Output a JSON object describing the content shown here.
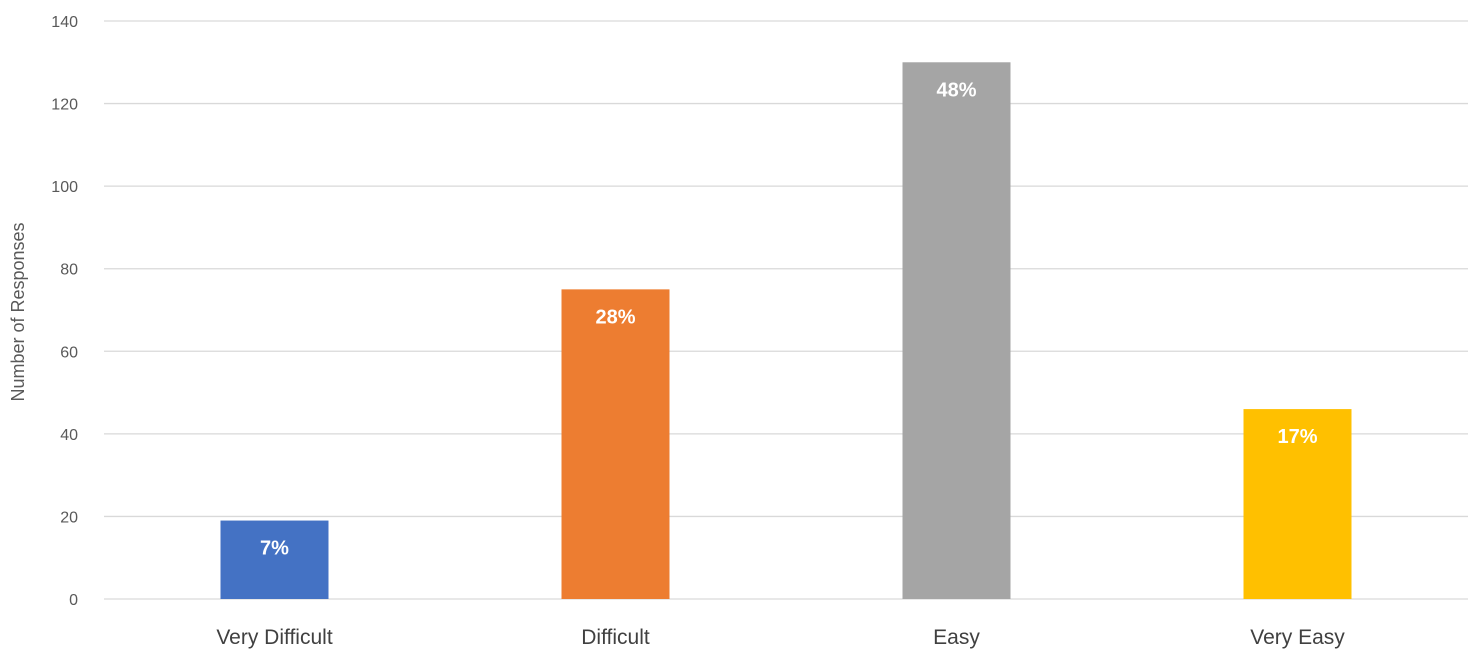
{
  "chart_data": {
    "type": "bar",
    "title": "",
    "xlabel": "",
    "ylabel": "Number of Responses",
    "ylim": [
      0,
      140
    ],
    "yticks": [
      0,
      20,
      40,
      60,
      80,
      100,
      120,
      140
    ],
    "grid": true,
    "legend": "none",
    "categories": [
      "Very Difficult",
      "Difficult",
      "Easy",
      "Very Easy"
    ],
    "values": [
      19,
      75,
      130,
      46
    ],
    "data_labels": [
      "7%",
      "28%",
      "48%",
      "17%"
    ],
    "colors": [
      "#4472c4",
      "#ed7d31",
      "#a5a5a5",
      "#ffc000"
    ]
  }
}
